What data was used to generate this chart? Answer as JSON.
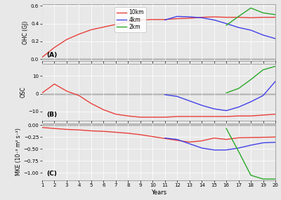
{
  "x_10km": [
    1,
    2,
    3,
    4,
    5,
    6,
    7,
    8,
    9,
    10,
    11,
    12,
    13,
    14,
    15,
    16,
    17,
    18,
    19,
    20
  ],
  "x_4km": [
    11,
    12,
    13,
    14,
    15,
    16,
    17,
    18,
    19,
    20
  ],
  "x_2km": [
    16,
    17,
    18,
    19,
    20
  ],
  "ohc_10km": [
    0.02,
    0.13,
    0.22,
    0.28,
    0.33,
    0.36,
    0.39,
    0.42,
    0.44,
    0.445,
    0.445,
    0.455,
    0.46,
    0.47,
    0.475,
    0.47,
    0.47,
    0.465,
    0.47,
    0.47
  ],
  "ohc_4km": [
    0.44,
    0.48,
    0.475,
    0.465,
    0.44,
    0.4,
    0.355,
    0.325,
    0.27,
    0.23
  ],
  "ohc_2km": [
    0.38,
    0.48,
    0.575,
    0.52,
    0.5
  ],
  "osc_10km": [
    0.5,
    5.5,
    1.5,
    -1.0,
    -5.5,
    -9.0,
    -11.5,
    -12.5,
    -13.2,
    -13.2,
    -13.2,
    -12.8,
    -12.8,
    -12.8,
    -12.8,
    -12.8,
    -12.5,
    -12.5,
    -12.0,
    -11.5
  ],
  "osc_4km": [
    -0.5,
    -1.5,
    -4.0,
    -6.5,
    -8.5,
    -9.5,
    -7.5,
    -4.5,
    -1.0,
    7.0
  ],
  "osc_2km": [
    0.5,
    3.0,
    8.0,
    13.5,
    15.5
  ],
  "mke_10km": [
    -0.05,
    -0.07,
    -0.09,
    -0.1,
    -0.12,
    -0.13,
    -0.15,
    -0.17,
    -0.2,
    -0.24,
    -0.28,
    -0.32,
    -0.355,
    -0.33,
    -0.27,
    -0.3,
    -0.265,
    -0.26,
    -0.255,
    -0.25
  ],
  "mke_4km": [
    -0.27,
    -0.3,
    -0.39,
    -0.48,
    -0.52,
    -0.52,
    -0.48,
    -0.42,
    -0.37,
    -0.36
  ],
  "mke_2km": [
    -0.07,
    -0.55,
    -1.05,
    -1.13,
    -1.13
  ],
  "colors": {
    "10km": "#e8403a",
    "4km": "#4040e8",
    "2km": "#28a828"
  },
  "ohc_ylim": [
    -0.02,
    0.62
  ],
  "osc_ylim": [
    -15,
    17
  ],
  "mke_ylim": [
    -1.15,
    0.04
  ],
  "ohc_yticks": [
    0.0,
    0.2,
    0.4,
    0.6
  ],
  "osc_yticks": [
    -10,
    0,
    10
  ],
  "mke_yticks": [
    -1.0,
    -0.75,
    -0.5,
    -0.25,
    0.0
  ],
  "ohc_ylabel": "OHC (GJ)",
  "osc_ylabel": "OSC",
  "mke_ylabel": "MKE (10⁻³ m² s⁻²)",
  "xlabel": "Years",
  "bg_color": "#e8e8e8",
  "panel_labels": [
    "(A)",
    "(B)",
    "(C)"
  ],
  "legend_labels": [
    "10km",
    "4km",
    "2km"
  ]
}
